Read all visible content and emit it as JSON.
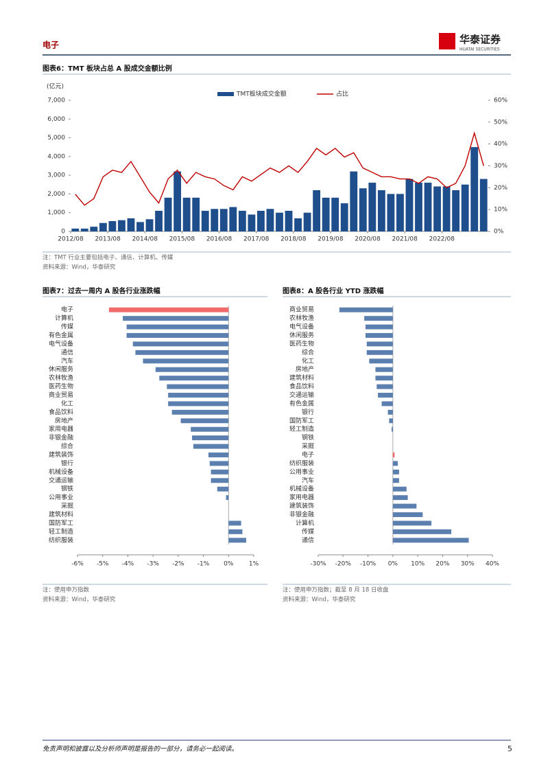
{
  "header": {
    "section": "电子",
    "logo": "华泰证券",
    "logo_en": "HUATAI SECURITIES"
  },
  "chart_data": [
    {
      "type": "bar_line",
      "title": "图表6：TMT 板块占总 A 股成交金额比例",
      "y_label": "(亿元)",
      "x": [
        "2012/08",
        "2012/11",
        "2013/02",
        "2013/05",
        "2013/08",
        "2013/11",
        "2014/02",
        "2014/05",
        "2014/08",
        "2014/11",
        "2015/02",
        "2015/05",
        "2015/08",
        "2015/11",
        "2016/02",
        "2016/05",
        "2016/08",
        "2016/11",
        "2017/02",
        "2017/05",
        "2017/08",
        "2017/11",
        "2018/02",
        "2018/05",
        "2018/08",
        "2018/11",
        "2019/02",
        "2019/05",
        "2019/08",
        "2019/11",
        "2020/02",
        "2020/05",
        "2020/08",
        "2020/11",
        "2021/02",
        "2021/05",
        "2021/08",
        "2021/11",
        "2022/02",
        "2022/05",
        "2022/08",
        "2022/11",
        "2023/02",
        "2023/05",
        "2023/08"
      ],
      "xticks": [
        "2012/08",
        "2013/08",
        "2014/08",
        "2015/08",
        "2016/08",
        "2017/08",
        "2018/08",
        "2019/08",
        "2020/08",
        "2021/08",
        "2022/08"
      ],
      "series": [
        {
          "name": "TMT板块成交金额",
          "color": "#1f4e8c",
          "values": [
            150,
            150,
            250,
            450,
            550,
            600,
            700,
            500,
            650,
            1100,
            1800,
            3200,
            1800,
            1800,
            1100,
            1200,
            1200,
            1300,
            1100,
            900,
            1100,
            1200,
            1000,
            1100,
            700,
            1000,
            2200,
            1800,
            1800,
            1500,
            3200,
            2300,
            2600,
            2200,
            2000,
            2000,
            2800,
            2600,
            2600,
            2400,
            2400,
            2200,
            2500,
            4500,
            2800
          ]
        },
        {
          "name": "占比",
          "color": "#c00000",
          "axis": "y2",
          "values": [
            17,
            12,
            15,
            25,
            28,
            27,
            32,
            25,
            18,
            13,
            24,
            28,
            22,
            27,
            25,
            24,
            21,
            19,
            25,
            23,
            26,
            29,
            27,
            30,
            27,
            32,
            38,
            35,
            38,
            34,
            36,
            29,
            27,
            25,
            25,
            24,
            24,
            22,
            25,
            24,
            20,
            22,
            30,
            45,
            30
          ]
        }
      ],
      "ylim": [
        0,
        7000
      ],
      "yticks": [
        0,
        {
          "value": 1000,
          "label": "1,000"
        },
        {
          "value": 2000,
          "label": "2,000"
        },
        {
          "value": 3000,
          "label": "3,000"
        },
        {
          "value": 4000,
          "label": "4,000"
        },
        {
          "value": 5000,
          "label": "5,000"
        },
        {
          "value": 6000,
          "label": "6,000"
        },
        {
          "value": 7000,
          "label": "7,000"
        }
      ],
      "y2lim": [
        0,
        60
      ],
      "y2ticks": [
        {
          "value": 0,
          "label": "0%"
        },
        {
          "value": 10,
          "label": "10%"
        },
        {
          "value": 20,
          "label": "20%"
        },
        {
          "value": 30,
          "label": "30%"
        },
        {
          "value": 40,
          "label": "40%"
        },
        {
          "value": 50,
          "label": "50%"
        },
        {
          "value": 60,
          "label": "60%"
        }
      ],
      "note": "注：TMT 行业主要包括电子、通信、计算机、传媒",
      "source": "资料来源：Wind，华泰研究"
    },
    {
      "type": "hbar",
      "title": "图表7：过去一周内 A 股各行业涨跌幅",
      "categories": [
        "电子",
        "计算机",
        "传媒",
        "有色金属",
        "电气设备",
        "通信",
        "汽车",
        "休闲服务",
        "农林牧渔",
        "医药生物",
        "商业贸易",
        "化工",
        "食品饮料",
        "房地产",
        "家用电器",
        "非银金融",
        "综合",
        "建筑装饰",
        "银行",
        "机械设备",
        "交通运输",
        "钢铁",
        "公用事业",
        "采掘",
        "建筑材料",
        "国防军工",
        "轻工制造",
        "纺织服装"
      ],
      "values": [
        -4.75,
        -4.2,
        -4.05,
        -4.05,
        -3.8,
        -3.7,
        -3.4,
        -2.9,
        -2.75,
        -2.45,
        -2.4,
        -2.4,
        -2.25,
        -1.9,
        -1.5,
        -1.45,
        -1.4,
        -0.8,
        -0.75,
        -0.7,
        -0.7,
        -0.45,
        -0.1,
        0,
        0,
        0.5,
        0.55,
        0.7
      ],
      "colors": [
        "#f26b6b",
        "#5b80b0",
        "#5b80b0",
        "#5b80b0",
        "#5b80b0",
        "#5b80b0",
        "#5b80b0",
        "#5b80b0",
        "#5b80b0",
        "#5b80b0",
        "#5b80b0",
        "#5b80b0",
        "#5b80b0",
        "#5b80b0",
        "#5b80b0",
        "#5b80b0",
        "#5b80b0",
        "#5b80b0",
        "#5b80b0",
        "#5b80b0",
        "#5b80b0",
        "#5b80b0",
        "#5b80b0",
        "#5b80b0",
        "#5b80b0",
        "#5b80b0",
        "#5b80b0",
        "#5b80b0"
      ],
      "xlim": [
        -6,
        1
      ],
      "xticks": [
        {
          "value": -6,
          "label": "-6%"
        },
        {
          "value": -5,
          "label": "-5%"
        },
        {
          "value": -4,
          "label": "-4%"
        },
        {
          "value": -3,
          "label": "-3%"
        },
        {
          "value": -2,
          "label": "-2%"
        },
        {
          "value": -1,
          "label": "-1%"
        },
        {
          "value": 0,
          "label": "0%"
        },
        {
          "value": 1,
          "label": "1%"
        }
      ],
      "note": "注：使用申万指数",
      "source": "资料来源：Wind，华泰研究"
    },
    {
      "type": "hbar",
      "title": "图表8：A 股各行业 YTD 涨跌幅",
      "categories": [
        "商业贸易",
        "农林牧渔",
        "电气设备",
        "休闲服务",
        "医药生物",
        "综合",
        "化工",
        "房地产",
        "建筑材料",
        "食品饮料",
        "交通运输",
        "有色金属",
        "银行",
        "国防军工",
        "轻工制造",
        "钢铁",
        "采掘",
        "电子",
        "纺织服装",
        "公用事业",
        "汽车",
        "机械设备",
        "家用电器",
        "建筑装饰",
        "非银金融",
        "计算机",
        "传媒",
        "通信"
      ],
      "values": [
        -21.5,
        -11.5,
        -11,
        -11,
        -10.5,
        -10.5,
        -9.5,
        -7,
        -7,
        -6.5,
        -6,
        -4.5,
        -2,
        -1.5,
        -0.5,
        0,
        0,
        0.7,
        2,
        2.5,
        2.5,
        5.5,
        6,
        9.5,
        12,
        15.5,
        23.5,
        30.5
      ],
      "colors": [
        "#5b80b0",
        "#5b80b0",
        "#5b80b0",
        "#5b80b0",
        "#5b80b0",
        "#5b80b0",
        "#5b80b0",
        "#5b80b0",
        "#5b80b0",
        "#5b80b0",
        "#5b80b0",
        "#5b80b0",
        "#5b80b0",
        "#5b80b0",
        "#5b80b0",
        "#5b80b0",
        "#5b80b0",
        "#f26b6b",
        "#5b80b0",
        "#5b80b0",
        "#5b80b0",
        "#5b80b0",
        "#5b80b0",
        "#5b80b0",
        "#5b80b0",
        "#5b80b0",
        "#5b80b0",
        "#5b80b0"
      ],
      "xlim": [
        -30,
        40
      ],
      "xticks": [
        {
          "value": -30,
          "label": "-30%"
        },
        {
          "value": -20,
          "label": "-20%"
        },
        {
          "value": -10,
          "label": "-10%"
        },
        {
          "value": 0,
          "label": "0%"
        },
        {
          "value": 10,
          "label": "10%"
        },
        {
          "value": 20,
          "label": "20%"
        },
        {
          "value": 30,
          "label": "30%"
        },
        {
          "value": 40,
          "label": "40%"
        }
      ],
      "note": "注：使用申万指数；截至 8 月 18 日收盘",
      "source": "资料来源：Wind，华泰研究"
    }
  ],
  "footer": {
    "disclaimer": "免责声明和披露以及分析师声明是报告的一部分，请务必一起阅读。",
    "page": "5"
  }
}
